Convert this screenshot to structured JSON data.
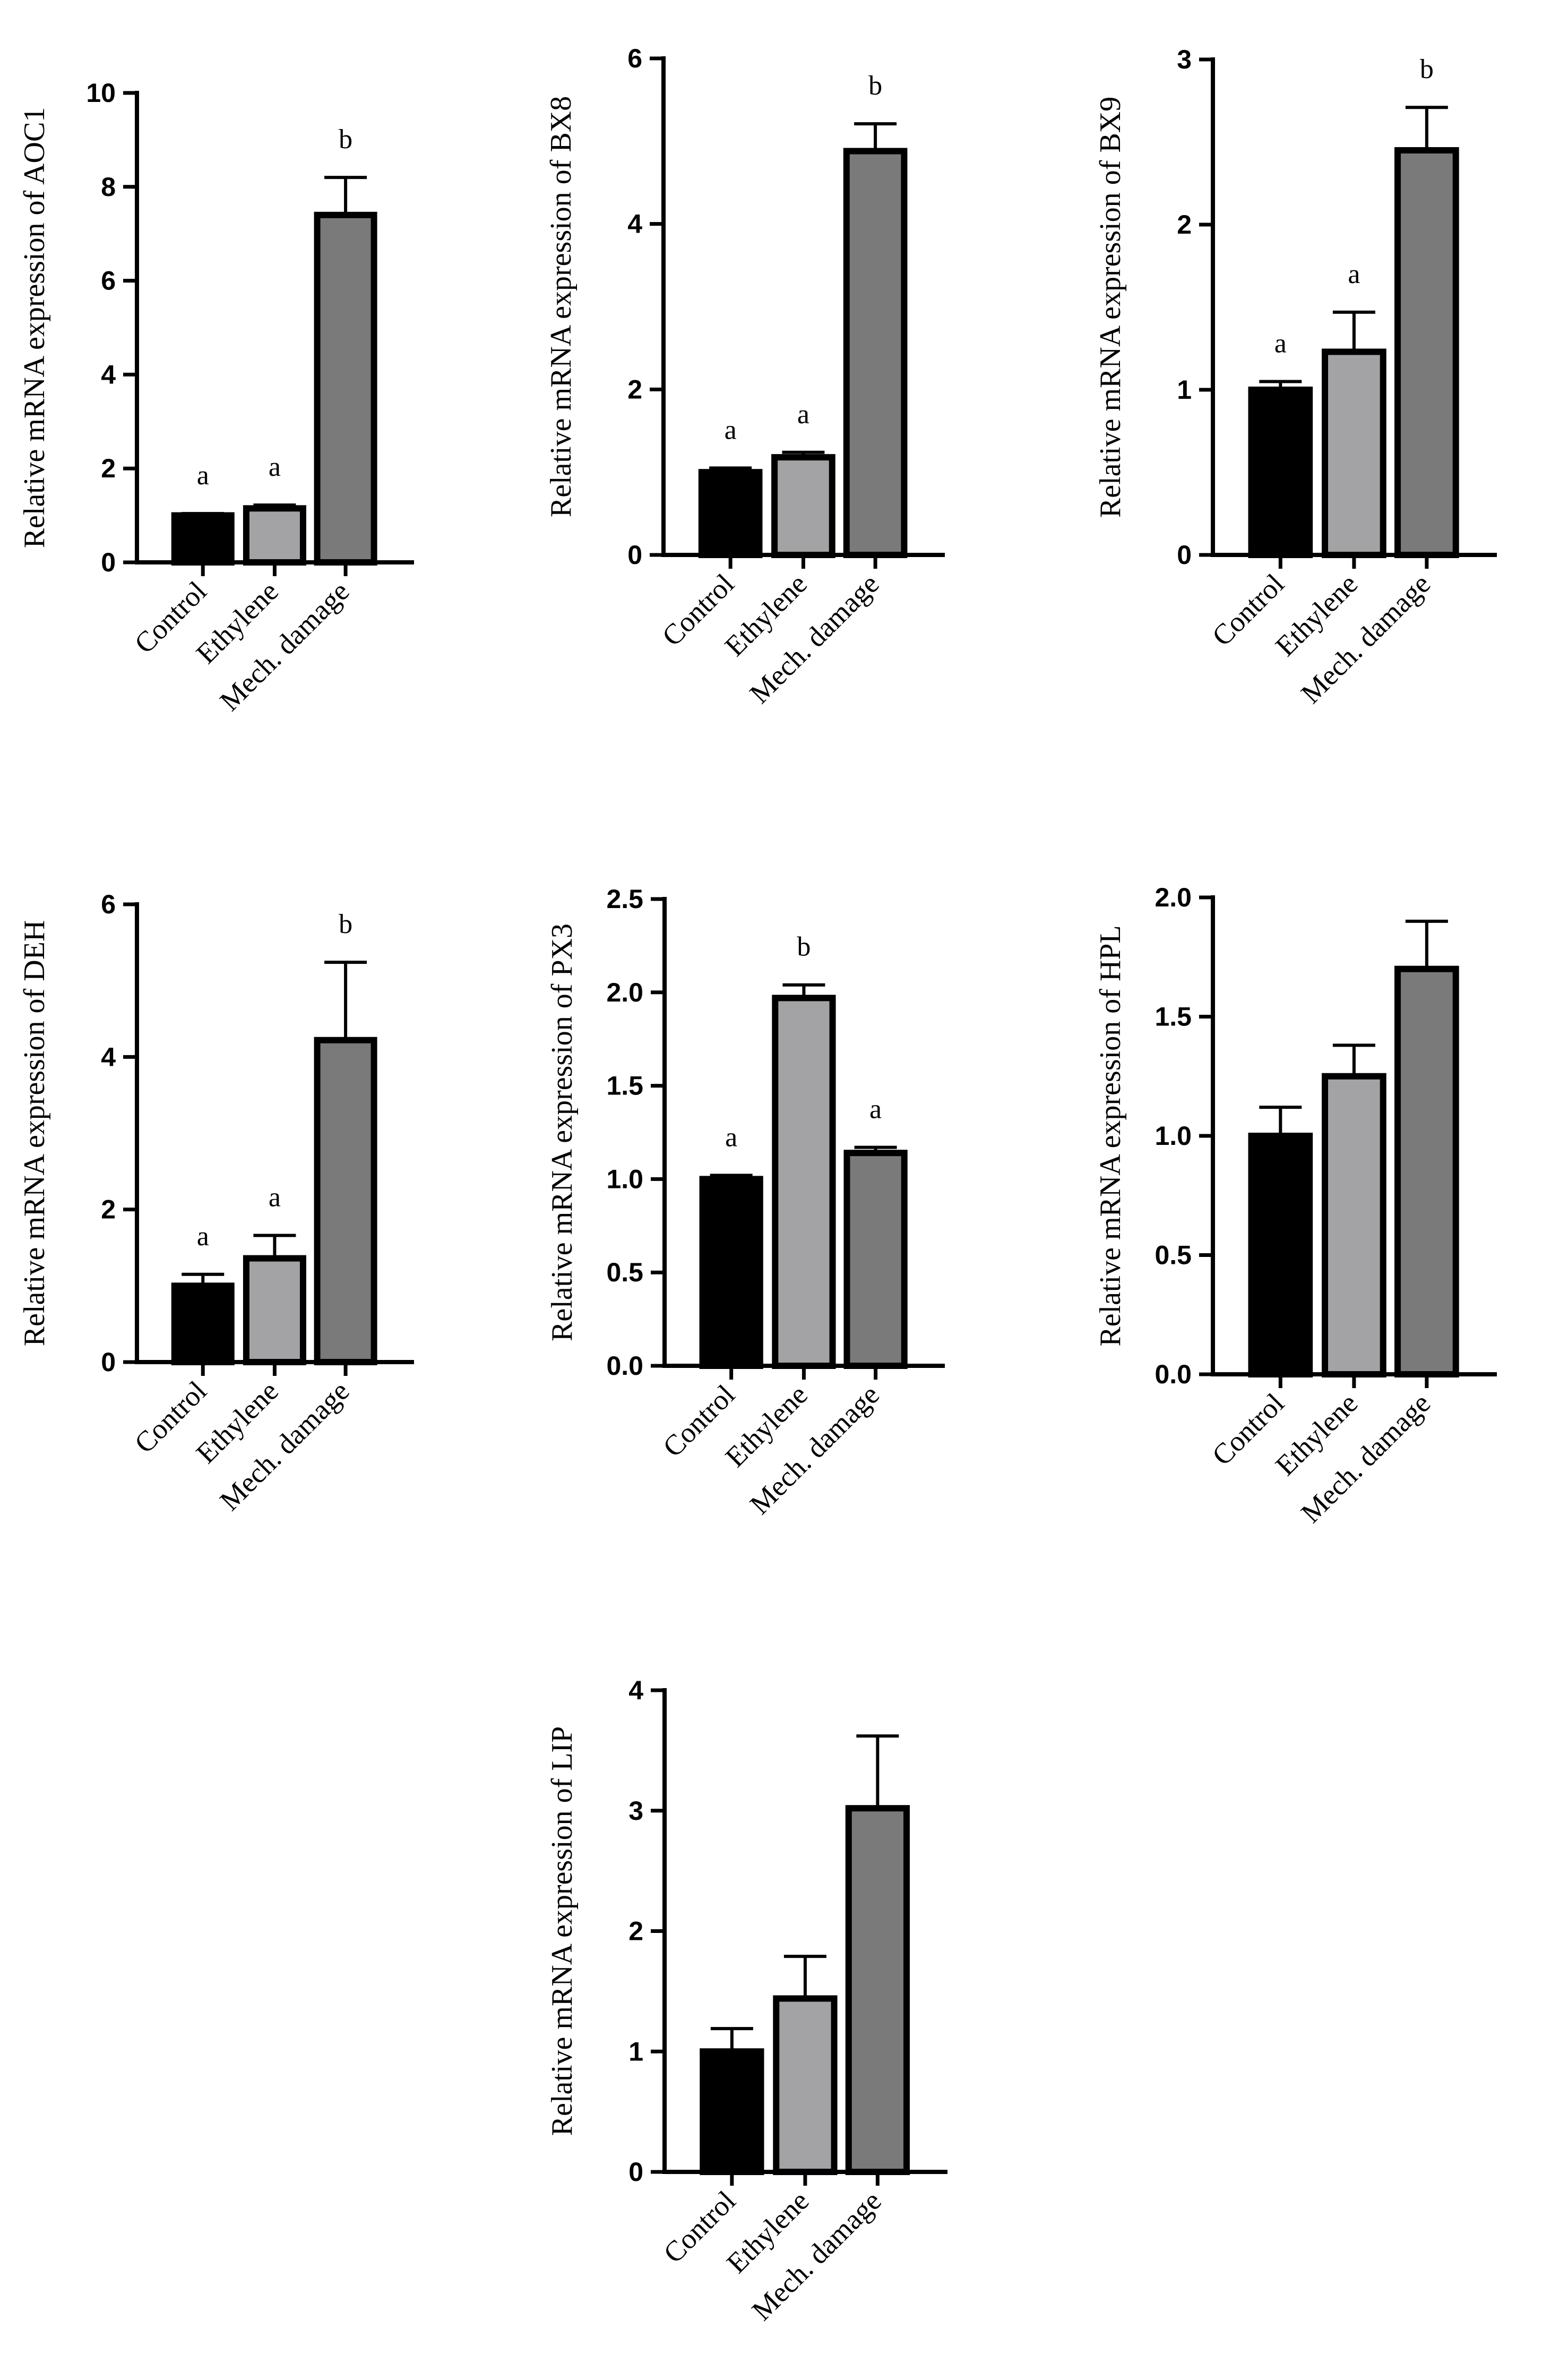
{
  "chart_data": [
    {
      "type": "bar",
      "title": "",
      "xlabel": "",
      "ylabel": "Relative mRNA expression of AOC1",
      "categories": [
        "Control",
        "Ethylene",
        "Mech. damage"
      ],
      "values": [
        1.0,
        1.15,
        7.4
      ],
      "errors": [
        0.04,
        0.07,
        0.8
      ],
      "significance": [
        "a",
        "a",
        "b"
      ],
      "ylim": [
        0,
        10
      ],
      "yticks": [
        0,
        2,
        4,
        6,
        8,
        10
      ],
      "ytick_labels": [
        "0",
        "2",
        "4",
        "6",
        "8",
        "10"
      ],
      "bar_colors": [
        "#000000",
        "#a3a3a5",
        "#7a7a7a"
      ]
    },
    {
      "type": "bar",
      "title": "",
      "xlabel": "",
      "ylabel": "Relative mRNA expression of BX8",
      "categories": [
        "Control",
        "Ethylene",
        "Mech. damage"
      ],
      "values": [
        1.0,
        1.18,
        4.88
      ],
      "errors": [
        0.05,
        0.06,
        0.33
      ],
      "significance": [
        "a",
        "a",
        "b"
      ],
      "ylim": [
        0,
        6
      ],
      "yticks": [
        0,
        2,
        4,
        6
      ],
      "ytick_labels": [
        "0",
        "2",
        "4",
        "6"
      ],
      "bar_colors": [
        "#000000",
        "#a3a3a5",
        "#7a7a7a"
      ]
    },
    {
      "type": "bar",
      "title": "",
      "xlabel": "",
      "ylabel": "Relative mRNA expression of BX9",
      "categories": [
        "Control",
        "Ethylene",
        "Mech. damage"
      ],
      "values": [
        1.0,
        1.23,
        2.45
      ],
      "errors": [
        0.05,
        0.24,
        0.26
      ],
      "significance": [
        "a",
        "a",
        "b"
      ],
      "ylim": [
        0,
        3
      ],
      "yticks": [
        0,
        1,
        2,
        3
      ],
      "ytick_labels": [
        "0",
        "1",
        "2",
        "3"
      ],
      "bar_colors": [
        "#000000",
        "#a3a3a5",
        "#7a7a7a"
      ]
    },
    {
      "type": "bar",
      "title": "",
      "xlabel": "",
      "ylabel": "Relative mRNA expression of DEH",
      "categories": [
        "Control",
        "Ethylene",
        "Mech. damage"
      ],
      "values": [
        1.0,
        1.36,
        4.22
      ],
      "errors": [
        0.15,
        0.3,
        1.02
      ],
      "significance": [
        "a",
        "a",
        "b"
      ],
      "ylim": [
        0,
        6
      ],
      "yticks": [
        0,
        2,
        4,
        6
      ],
      "ytick_labels": [
        "0",
        "2",
        "4",
        "6"
      ],
      "bar_colors": [
        "#000000",
        "#a3a3a5",
        "#7a7a7a"
      ]
    },
    {
      "type": "bar",
      "title": "",
      "xlabel": "",
      "ylabel": "Relative mRNA expression of PX3",
      "categories": [
        "Control",
        "Ethylene",
        "Mech. damage"
      ],
      "values": [
        1.0,
        1.97,
        1.14
      ],
      "errors": [
        0.02,
        0.07,
        0.03
      ],
      "significance": [
        "a",
        "b",
        "a"
      ],
      "ylim": [
        0,
        2.5
      ],
      "yticks": [
        0,
        0.5,
        1,
        1.5,
        2,
        2.5
      ],
      "ytick_labels": [
        "0.0",
        "0.5",
        "1.0",
        "1.5",
        "2.0",
        "2.5"
      ],
      "bar_colors": [
        "#000000",
        "#a3a3a5",
        "#7a7a7a"
      ]
    },
    {
      "type": "bar",
      "title": "",
      "xlabel": "",
      "ylabel": "Relative mRNA expression of HPL",
      "categories": [
        "Control",
        "Ethylene",
        "Mech. damage"
      ],
      "values": [
        1.0,
        1.25,
        1.7
      ],
      "errors": [
        0.12,
        0.13,
        0.2
      ],
      "significance": [
        "",
        "",
        ""
      ],
      "ylim": [
        0,
        2
      ],
      "yticks": [
        0,
        0.5,
        1,
        1.5,
        2
      ],
      "ytick_labels": [
        "0.0",
        "0.5",
        "1.0",
        "1.5",
        "2.0"
      ],
      "bar_colors": [
        "#000000",
        "#a3a3a5",
        "#7a7a7a"
      ]
    },
    {
      "type": "bar",
      "title": "",
      "xlabel": "",
      "ylabel": "Relative mRNA expression of LIP",
      "categories": [
        "Control",
        "Ethylene",
        "Mech. damage"
      ],
      "values": [
        1.0,
        1.44,
        3.02
      ],
      "errors": [
        0.19,
        0.35,
        0.6
      ],
      "significance": [
        "",
        "",
        ""
      ],
      "ylim": [
        0,
        4
      ],
      "yticks": [
        0,
        1,
        2,
        3,
        4
      ],
      "ytick_labels": [
        "0",
        "1",
        "2",
        "3",
        "4"
      ],
      "bar_colors": [
        "#000000",
        "#a3a3a5",
        "#7a7a7a"
      ]
    }
  ]
}
